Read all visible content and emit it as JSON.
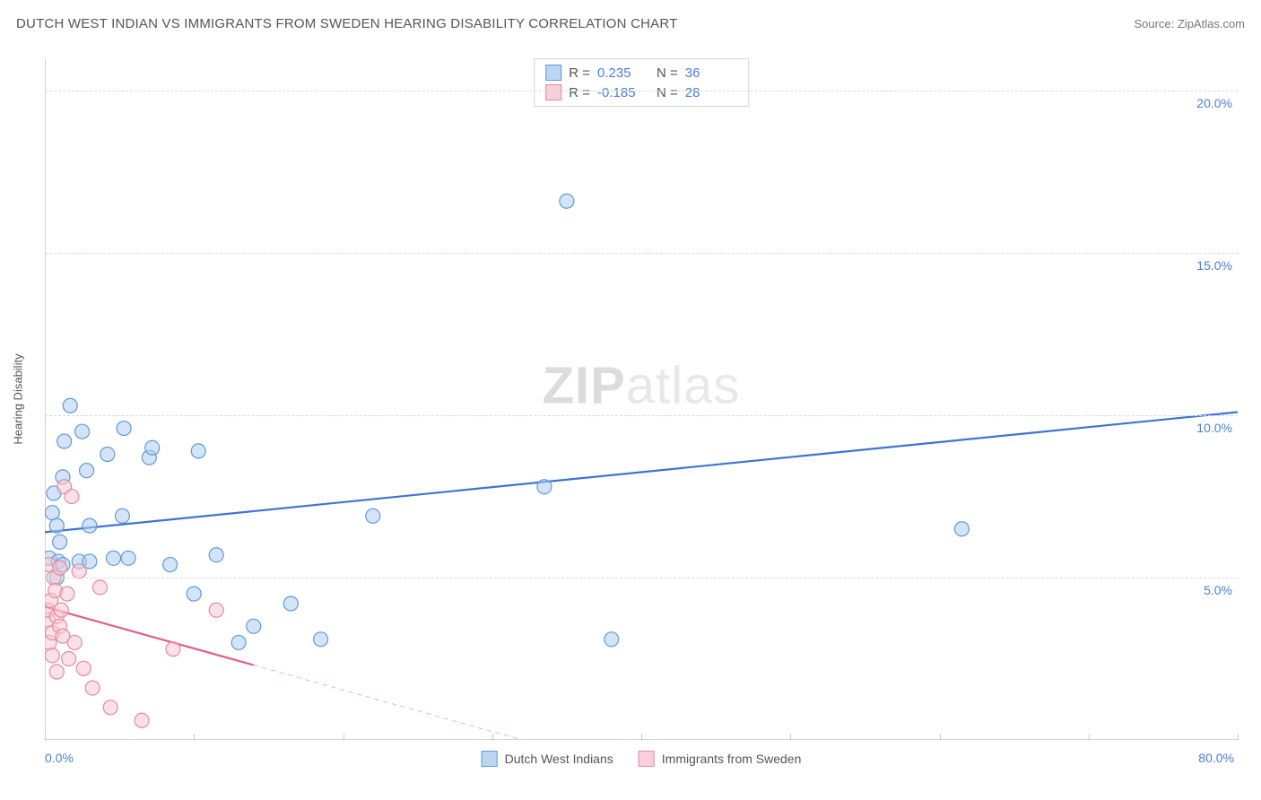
{
  "title": "DUTCH WEST INDIAN VS IMMIGRANTS FROM SWEDEN HEARING DISABILITY CORRELATION CHART",
  "source_label": "Source: ZipAtlas.com",
  "ylabel": "Hearing Disability",
  "watermark_a": "ZIP",
  "watermark_b": "atlas",
  "chart": {
    "type": "scatter",
    "background": "#ffffff",
    "grid_color": "#d8d8d8",
    "axis_color": "#d0d0d0",
    "xlim": [
      0,
      80
    ],
    "ylim": [
      0,
      21
    ],
    "x_min_label": "0.0%",
    "x_max_label": "80.0%",
    "y_ticks": [
      {
        "v": 5,
        "label": "5.0%"
      },
      {
        "v": 10,
        "label": "10.0%"
      },
      {
        "v": 15,
        "label": "15.0%"
      },
      {
        "v": 20,
        "label": "20.0%"
      }
    ],
    "x_tick_positions": [
      0,
      10,
      20,
      30,
      40,
      50,
      60,
      70,
      80
    ],
    "marker_radius": 8,
    "marker_stroke_width": 1.2,
    "line_width": 2.2,
    "series": [
      {
        "key": "dutch",
        "label": "Dutch West Indians",
        "fill": "#aecdf0",
        "stroke": "#6199d9",
        "line_color": "#3f74d1",
        "swatch_fill": "#bcd6f2",
        "swatch_border": "#6199d9",
        "r_label": "R =",
        "r_value": "0.235",
        "n_label": "N =",
        "n_value": "36",
        "trend": {
          "x1": 0,
          "y1": 6.4,
          "x2": 80,
          "y2": 10.1,
          "dash": false,
          "solid_x_end": 80
        },
        "points": [
          [
            0.3,
            5.6
          ],
          [
            0.5,
            7.0
          ],
          [
            0.6,
            7.6
          ],
          [
            0.8,
            5.0
          ],
          [
            0.8,
            6.6
          ],
          [
            0.9,
            5.5
          ],
          [
            1.0,
            6.1
          ],
          [
            1.2,
            8.1
          ],
          [
            1.2,
            5.4
          ],
          [
            1.3,
            9.2
          ],
          [
            1.7,
            10.3
          ],
          [
            2.3,
            5.5
          ],
          [
            2.5,
            9.5
          ],
          [
            2.8,
            8.3
          ],
          [
            3.0,
            6.6
          ],
          [
            3.0,
            5.5
          ],
          [
            4.2,
            8.8
          ],
          [
            4.6,
            5.6
          ],
          [
            5.2,
            6.9
          ],
          [
            5.3,
            9.6
          ],
          [
            5.6,
            5.6
          ],
          [
            7.0,
            8.7
          ],
          [
            7.2,
            9.0
          ],
          [
            8.4,
            5.4
          ],
          [
            10.0,
            4.5
          ],
          [
            10.3,
            8.9
          ],
          [
            11.5,
            5.7
          ],
          [
            13.0,
            3.0
          ],
          [
            14.0,
            3.5
          ],
          [
            16.5,
            4.2
          ],
          [
            18.5,
            3.1
          ],
          [
            22.0,
            6.9
          ],
          [
            33.5,
            7.8
          ],
          [
            35.0,
            16.6
          ],
          [
            38.0,
            3.1
          ],
          [
            61.5,
            6.5
          ]
        ]
      },
      {
        "key": "sweden",
        "label": "Immigrants from Sweden",
        "fill": "#f6c9d3",
        "stroke": "#e48aa1",
        "line_color": "#e05f87",
        "swatch_fill": "#f8cfda",
        "swatch_border": "#e48aa1",
        "r_label": "R =",
        "r_value": "-0.185",
        "n_label": "N =",
        "n_value": "28",
        "trend": {
          "x1": 0,
          "y1": 4.1,
          "x2": 32,
          "y2": 0,
          "dash": true,
          "solid_x_end": 14
        },
        "points": [
          [
            0.2,
            3.7
          ],
          [
            0.2,
            4.0
          ],
          [
            0.3,
            3.0
          ],
          [
            0.3,
            5.4
          ],
          [
            0.4,
            4.3
          ],
          [
            0.5,
            2.6
          ],
          [
            0.5,
            3.3
          ],
          [
            0.6,
            5.0
          ],
          [
            0.7,
            4.6
          ],
          [
            0.8,
            3.8
          ],
          [
            0.8,
            2.1
          ],
          [
            1.0,
            3.5
          ],
          [
            1.0,
            5.3
          ],
          [
            1.1,
            4.0
          ],
          [
            1.2,
            3.2
          ],
          [
            1.3,
            7.8
          ],
          [
            1.5,
            4.5
          ],
          [
            1.6,
            2.5
          ],
          [
            1.8,
            7.5
          ],
          [
            2.0,
            3.0
          ],
          [
            2.3,
            5.2
          ],
          [
            2.6,
            2.2
          ],
          [
            3.2,
            1.6
          ],
          [
            3.7,
            4.7
          ],
          [
            4.4,
            1.0
          ],
          [
            6.5,
            0.6
          ],
          [
            8.6,
            2.8
          ],
          [
            11.5,
            4.0
          ]
        ]
      }
    ]
  }
}
